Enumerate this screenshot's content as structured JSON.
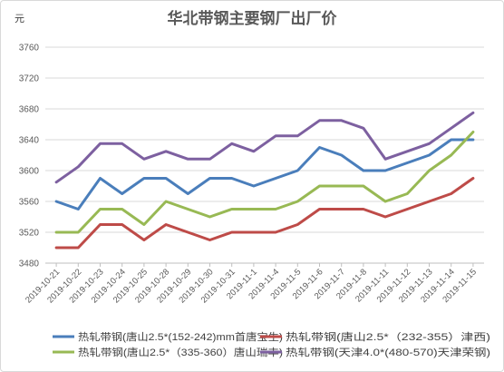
{
  "chart_data": {
    "type": "line",
    "title": "华北带钢主要钢厂出厂价",
    "unit_label": "元",
    "ylim": [
      3480,
      3760
    ],
    "yticks": [
      3480,
      3520,
      3560,
      3600,
      3640,
      3680,
      3720,
      3760
    ],
    "grid": true,
    "legend_position": "bottom",
    "categories": [
      "2019-10-21",
      "2019-10-22",
      "2019-10-23",
      "2019-10-24",
      "2019-10-25",
      "2019-10-28",
      "2019-10-29",
      "2019-10-30",
      "2019-10-31",
      "2019-11-1",
      "2019-11-4",
      "2019-11-5",
      "2019-11-6",
      "2019-11-7",
      "2019-11-8",
      "2019-11-11",
      "2019-11-12",
      "2019-11-13",
      "2019-11-14",
      "2019-11-15"
    ],
    "series": [
      {
        "name": "热轧带钢(唐山2.5*(152-242)mm首唐宝生)",
        "color": "#4a7ebb",
        "values": [
          3560,
          3550,
          3590,
          3570,
          3590,
          3590,
          3570,
          3590,
          3590,
          3580,
          3590,
          3600,
          3630,
          3620,
          3600,
          3600,
          3610,
          3620,
          3640,
          3640
        ]
      },
      {
        "name": "热轧带钢(唐山2.5*（232-355）津西)",
        "color": "#be4b48",
        "values": [
          3500,
          3500,
          3530,
          3530,
          3510,
          3530,
          3520,
          3510,
          3520,
          3520,
          3520,
          3530,
          3550,
          3550,
          3550,
          3540,
          3550,
          3560,
          3570,
          3590
        ]
      },
      {
        "name": "热轧带钢(唐山2.5*（335-360）唐山瑞丰)",
        "color": "#98b954",
        "values": [
          3520,
          3520,
          3550,
          3550,
          3530,
          3560,
          3550,
          3540,
          3550,
          3550,
          3550,
          3560,
          3580,
          3580,
          3580,
          3560,
          3570,
          3600,
          3620,
          3650
        ]
      },
      {
        "name": "热轧带钢(天津4.0*(480-570)天津荣钢)",
        "color": "#7d60a0",
        "values": [
          3585,
          3605,
          3635,
          3635,
          3615,
          3625,
          3615,
          3615,
          3635,
          3625,
          3645,
          3645,
          3665,
          3665,
          3655,
          3615,
          3625,
          3635,
          3655,
          3675
        ]
      }
    ]
  }
}
